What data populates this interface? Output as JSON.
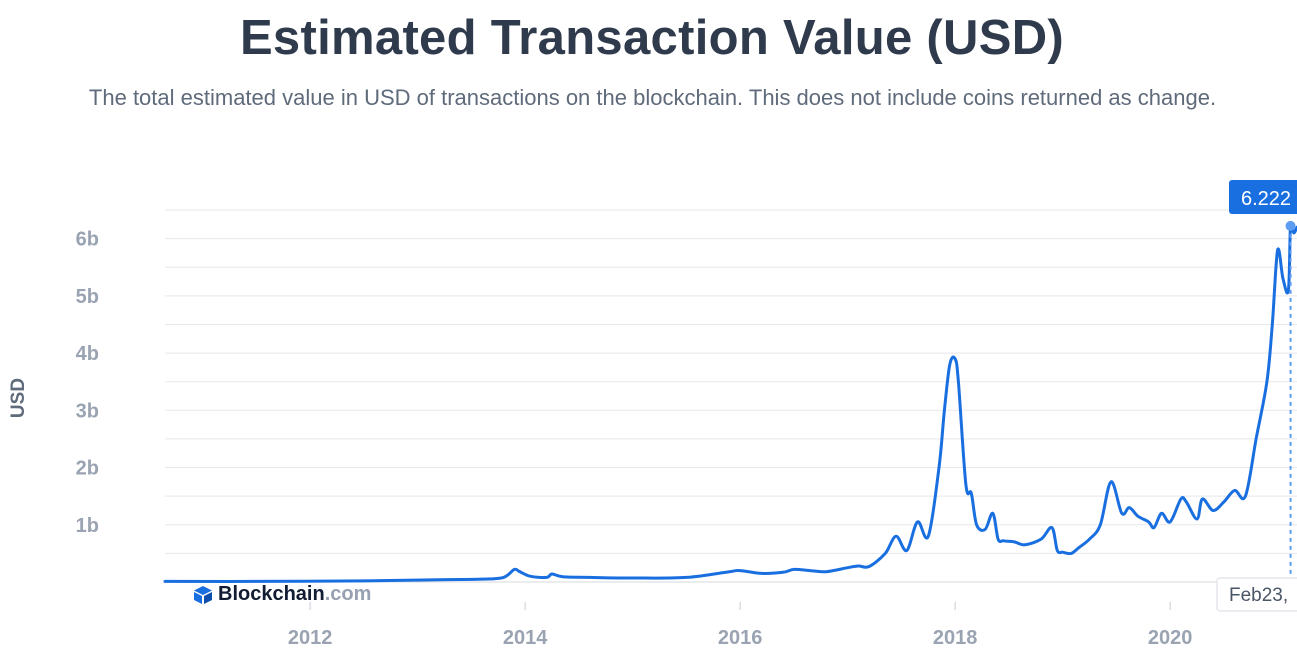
{
  "colors": {
    "line": "#1a6fe0",
    "tooltip_bg": "#1a6fe0",
    "tooltip_text": "#ffffff",
    "axis_text": "#9aa3b2",
    "grid": "#e6e8ec",
    "title": "#2f3b4c",
    "subtitle": "#5f6b7b",
    "brand_dark": "#121d33",
    "brand_gray": "#98a1b2"
  },
  "brand": {
    "name": "Blockchain",
    "suffix": ".com",
    "icon": "blockchain-cube-icon"
  },
  "tooltip": {
    "value_label": "6.222",
    "date_label": "Feb23,"
  },
  "chart_data": {
    "type": "line",
    "title": "Estimated Transaction Value (USD)",
    "subtitle": "The total estimated value in USD of transactions on the blockchain. This does not include coins returned as change.",
    "xlabel": "",
    "ylabel": "USD",
    "xlim": [
      2010.65,
      2021.18
    ],
    "ylim": [
      0,
      6.5
    ],
    "x_ticks": [
      2012,
      2014,
      2016,
      2018,
      2020
    ],
    "x_tick_labels": [
      "2012",
      "2014",
      "2016",
      "2018",
      "2020"
    ],
    "y_ticks": [
      1,
      2,
      3,
      4,
      5,
      6
    ],
    "y_tick_labels": [
      "1b",
      "2b",
      "3b",
      "4b",
      "5b",
      "6b"
    ],
    "y_unit": "billion USD",
    "grid": true,
    "series": [
      {
        "name": "Estimated Transaction Value (USD)",
        "x": [
          2010.65,
          2011.5,
          2012.5,
          2013.2,
          2013.6,
          2013.8,
          2013.9,
          2013.95,
          2014.05,
          2014.2,
          2014.25,
          2014.35,
          2014.6,
          2015.0,
          2015.5,
          2015.9,
          2016.0,
          2016.2,
          2016.4,
          2016.5,
          2016.65,
          2016.8,
          2017.0,
          2017.1,
          2017.2,
          2017.35,
          2017.45,
          2017.55,
          2017.65,
          2017.75,
          2017.85,
          2017.9,
          2017.95,
          2018.0,
          2018.03,
          2018.1,
          2018.15,
          2018.2,
          2018.28,
          2018.35,
          2018.4,
          2018.45,
          2018.55,
          2018.65,
          2018.8,
          2018.9,
          2018.95,
          2019.0,
          2019.08,
          2019.15,
          2019.25,
          2019.35,
          2019.45,
          2019.55,
          2019.62,
          2019.7,
          2019.8,
          2019.85,
          2019.92,
          2020.0,
          2020.1,
          2020.15,
          2020.25,
          2020.3,
          2020.4,
          2020.5,
          2020.6,
          2020.7,
          2020.8,
          2020.9,
          2020.95,
          2021.0,
          2021.05,
          2021.1,
          2021.12,
          2021.15,
          2021.18
        ],
        "y": [
          0.01,
          0.01,
          0.02,
          0.04,
          0.05,
          0.08,
          0.22,
          0.18,
          0.1,
          0.08,
          0.14,
          0.09,
          0.08,
          0.07,
          0.08,
          0.18,
          0.2,
          0.15,
          0.17,
          0.22,
          0.2,
          0.18,
          0.25,
          0.28,
          0.27,
          0.5,
          0.8,
          0.55,
          1.05,
          0.8,
          2.0,
          3.0,
          3.8,
          3.9,
          3.5,
          1.7,
          1.55,
          1.0,
          0.92,
          1.2,
          0.75,
          0.72,
          0.7,
          0.65,
          0.75,
          0.95,
          0.55,
          0.52,
          0.5,
          0.6,
          0.75,
          1.0,
          1.75,
          1.2,
          1.3,
          1.15,
          1.05,
          0.95,
          1.2,
          1.05,
          1.45,
          1.4,
          1.1,
          1.45,
          1.25,
          1.4,
          1.6,
          1.5,
          2.5,
          3.5,
          4.5,
          5.8,
          5.3,
          5.1,
          6.222,
          6.1,
          6.2
        ]
      }
    ]
  }
}
